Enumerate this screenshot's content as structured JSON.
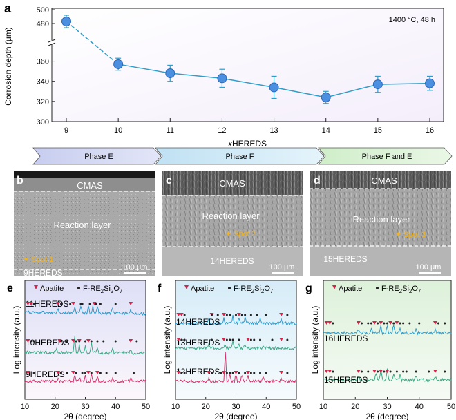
{
  "panel_labels": {
    "a": "a",
    "b": "b",
    "c": "c",
    "d": "d",
    "e": "e",
    "f": "f",
    "g": "g"
  },
  "colors": {
    "accent": "#2e9dc9",
    "marker": "#4a8fe0",
    "apatite": "#d6244a",
    "fre": "#222222",
    "trace_blue": "#2d9ccd",
    "trace_green": "#3aa884",
    "trace_pink": "#d6336c"
  },
  "chart_data": [
    {
      "type": "line",
      "id": "a",
      "title": "",
      "annotation": "1400 °C, 48 h",
      "xlabel": "xHEREDS",
      "xlabel_italic": "x",
      "xlabel_rest": "HEREDS",
      "ylabel": "Corrosion depth (μm)",
      "x": [
        9,
        10,
        11,
        12,
        13,
        14,
        15,
        16
      ],
      "values": [
        483,
        357,
        348,
        343,
        334,
        324,
        337,
        338
      ],
      "errors": [
        9,
        6,
        8,
        9,
        11,
        6,
        8,
        7
      ],
      "x_ticks": [
        "9",
        "10",
        "11",
        "12",
        "13",
        "14",
        "15",
        "16"
      ],
      "y_ticks_lower": [
        "300",
        "320",
        "340",
        "360"
      ],
      "y_ticks_upper": [
        "480",
        "500"
      ],
      "ylim_lower": [
        300,
        370
      ],
      "ylim_upper": [
        470,
        500
      ],
      "axis_break": true
    },
    {
      "type": "bar",
      "id": "phases",
      "categories": [
        "Phase E",
        "Phase F",
        "Phase F and E"
      ],
      "ranges": [
        [
          9,
          11
        ],
        [
          11,
          15
        ],
        [
          15,
          16
        ]
      ]
    },
    {
      "type": "line",
      "id": "e",
      "xlabel": "2θ (degree)",
      "ylabel": "Log intensity (a.u.)",
      "x_ticks": [
        "10",
        "20",
        "30",
        "40",
        "50"
      ],
      "xlim": [
        10,
        50
      ],
      "legend": [
        "Apatite",
        "F-RE2Si2O7"
      ],
      "series": [
        {
          "name": "11HEREDS"
        },
        {
          "name": "10HEREDS"
        },
        {
          "name": "9HEREDS"
        }
      ]
    },
    {
      "type": "line",
      "id": "f",
      "xlabel": "2θ (degree)",
      "ylabel": "Log intensity (a.u.)",
      "x_ticks": [
        "10",
        "20",
        "30",
        "40",
        "50"
      ],
      "xlim": [
        10,
        50
      ],
      "legend": [
        "Apatite",
        "F-RE2Si2O7"
      ],
      "series": [
        {
          "name": "14HEREDS"
        },
        {
          "name": "13HEREDS"
        },
        {
          "name": "12HEREDS"
        }
      ]
    },
    {
      "type": "line",
      "id": "g",
      "xlabel": "2θ (degree)",
      "ylabel": "Log intensity (a.u.)",
      "x_ticks": [
        "10",
        "20",
        "30",
        "40",
        "50"
      ],
      "xlim": [
        10,
        50
      ],
      "legend": [
        "Apatite",
        "F-RE2Si2O7"
      ],
      "series": [
        {
          "name": "16HEREDS"
        },
        {
          "name": "15HEREDS"
        }
      ]
    }
  ],
  "micrographs": [
    {
      "id": "b",
      "top": "CMAS",
      "middle": "Reaction layer",
      "spot": "Spot 1",
      "bottom": "9HEREDS",
      "scale": "100 μm"
    },
    {
      "id": "c",
      "top": "CMAS",
      "middle": "Reaction layer",
      "spot": "Spot 2",
      "bottom": "14HEREDS",
      "scale": "100 μm"
    },
    {
      "id": "d",
      "top": "CMAS",
      "middle": "Reaction layer",
      "spot": "Spot 3",
      "bottom": "15HEREDS",
      "scale": "100 μm"
    }
  ],
  "legend_text": {
    "apatite": "Apatite",
    "fre_prefix": "F-RE",
    "fre_sub1": "2",
    "fre_mid": "Si",
    "fre_sub2": "2",
    "fre_suffix": "O",
    "fre_sub3": "7"
  }
}
